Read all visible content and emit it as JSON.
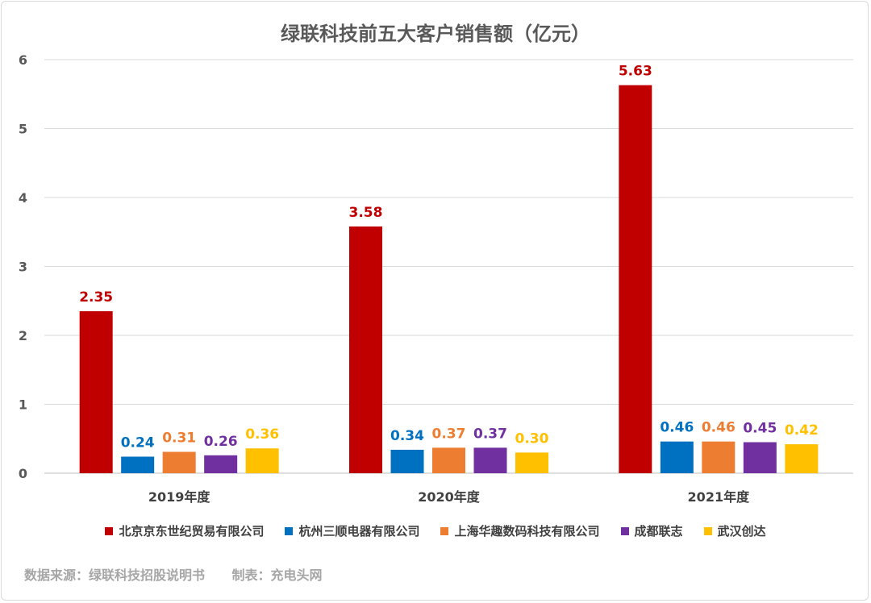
{
  "chart_data": {
    "type": "bar",
    "title": "绿联科技前五大客户销售额（亿元）",
    "categories": [
      "2019年度",
      "2020年度",
      "2021年度"
    ],
    "ylim": [
      0,
      6
    ],
    "yticks": [
      "0",
      "1",
      "2",
      "3",
      "4",
      "5",
      "6"
    ],
    "grid": true,
    "legend_position": "bottom",
    "series": [
      {
        "name": "北京京东世纪贸易有限公司",
        "color": "#c00000",
        "values": [
          2.35,
          3.58,
          5.63
        ],
        "labels": [
          "2.35",
          "3.58",
          "5.63"
        ]
      },
      {
        "name": "杭州三顺电器有限公司",
        "color": "#0070c0",
        "values": [
          0.24,
          0.34,
          0.46
        ],
        "labels": [
          "0.24",
          "0.34",
          "0.46"
        ]
      },
      {
        "name": "上海华趣数码科技有限公司",
        "color": "#ed7d31",
        "values": [
          0.31,
          0.37,
          0.46
        ],
        "labels": [
          "0.31",
          "0.37",
          "0.46"
        ]
      },
      {
        "name": "成都联志",
        "color": "#7030a0",
        "values": [
          0.26,
          0.37,
          0.45
        ],
        "labels": [
          "0.26",
          "0.37",
          "0.45"
        ]
      },
      {
        "name": "武汉创达",
        "color": "#ffc000",
        "values": [
          0.36,
          0.3,
          0.42
        ],
        "labels": [
          "0.36",
          "0.30",
          "0.42"
        ]
      }
    ]
  },
  "footer": {
    "source": "数据来源：绿联科技招股说明书",
    "maker": "制表：充电头网"
  }
}
